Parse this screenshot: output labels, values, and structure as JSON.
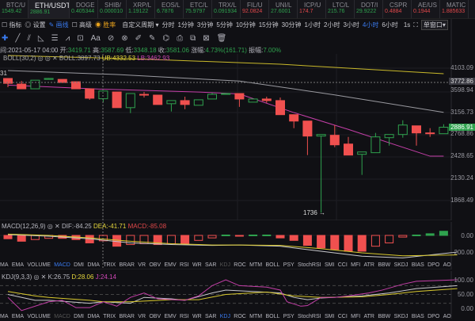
{
  "tickers": [
    {
      "name": "BTC/U",
      "price": "1549.42",
      "dir": "up"
    },
    {
      "name": "ETH/USDT",
      "price": "2886.91",
      "dir": "up",
      "active": true
    },
    {
      "name": "DOGE",
      "price": "0.405344",
      "dir": "up"
    },
    {
      "name": "SHIB/",
      "price": "0.000010",
      "dir": "up"
    },
    {
      "name": "XRP/L",
      "price": "1.19122",
      "dir": "up"
    },
    {
      "name": "EOS/L",
      "price": "6.7876",
      "dir": "up"
    },
    {
      "name": "ETC/L",
      "price": "75.9797",
      "dir": "up"
    },
    {
      "name": "TRX/L",
      "price": "0.091934",
      "dir": "up"
    },
    {
      "name": "FIL/U",
      "price": "92.0824",
      "dir": "dn"
    },
    {
      "name": "UNI/L",
      "price": "27.6001",
      "dir": "up"
    },
    {
      "name": "ICP/U",
      "price": "174.7",
      "dir": "dn"
    },
    {
      "name": "LTC/L",
      "price": "215.76",
      "dir": "up"
    },
    {
      "name": "DOT/I",
      "price": "29.9222",
      "dir": "up"
    },
    {
      "name": "CSPR",
      "price": "0.4884",
      "dir": "dn"
    },
    {
      "name": "AE/US",
      "price": "0.1944",
      "dir": "dn"
    },
    {
      "name": "MATIC",
      "price": "1.885633",
      "dir": "dn"
    }
  ],
  "toolbar": {
    "indicators": "☐ 指标",
    "settings": "◎ 设置",
    "draw": "✎ 画线",
    "advanced": "☐ 高级",
    "winrate": "◉ 胜率",
    "custom": "自定义周期 ▾",
    "periods": [
      "分时",
      "1分钟",
      "3分钟",
      "5分钟",
      "10分钟",
      "15分钟",
      "30分钟",
      "1小时",
      "2小时",
      "3小时",
      "4小时",
      "6小时"
    ],
    "active_period": "4小时",
    "s1": "1s",
    "window": "单窗口▾"
  },
  "draw_tools": [
    "✚",
    "╱",
    "⫽",
    "◺",
    "☰",
    "⩘",
    "⊡",
    "Aa",
    "⊘",
    "⊗",
    "✐",
    "✎",
    "⌬",
    "⎙",
    "⧉",
    "⊠",
    "🗑"
  ],
  "info": {
    "time": "间:2021-05-17 04:00",
    "open_l": "开:",
    "open": "3419.71",
    "high_l": "高:",
    "high": "3587.69",
    "low_l": "低:",
    "low": "3348.18",
    "close_l": "收:",
    "close": "3581.06",
    "chg_l": "涨幅:",
    "chg": "4.73%(161.71)",
    "amp_l": "振幅:",
    "amp": "7.00%"
  },
  "boll": {
    "name": "BOLL(30,2)",
    "mid": "BOLL:3897.73",
    "ub": "UB:4332.53",
    "lb": "LB:3462.93"
  },
  "axis": {
    "price": [
      "4103.09",
      "3598.94",
      "3156.73",
      "2768.86",
      "2428.65",
      "2130.24",
      "1868.49"
    ],
    "cross_price": "3772.86",
    "last_price": "2886.91",
    "left_label": "31",
    "low_marker": "1736 →"
  },
  "macd": {
    "name": "MACD(12,26,9)",
    "dif": "DIF:-84.25",
    "dea": "DEA:-41.71",
    "macd": "MACD:-85.08",
    "ticks": [
      "0.00",
      "-200.00"
    ]
  },
  "kdj": {
    "name": "KDJ(9,3,3)",
    "k": "K:26.75",
    "d": "D:28.06",
    "j": "J:24.14",
    "ticks": [
      "100.00",
      "50.00",
      "0.00"
    ]
  },
  "indicators": [
    "MA",
    "EMA",
    "VOLUME",
    "MACD",
    "DMI",
    "DMA",
    "TRIX",
    "BRAR",
    "VR",
    "OBV",
    "EMV",
    "RSI",
    "WR",
    "SAR",
    "KDJ",
    "ROC",
    "MTM",
    "BOLL",
    "PSY",
    "StochRSI",
    "SMI",
    "CCI",
    "MFI",
    "ATR",
    "BBW",
    "SKDJ",
    "BIAS",
    "DPO",
    "AO"
  ],
  "colors": {
    "up": "#2fa24e",
    "down": "#f0504f",
    "boll_up": "#c9b92a",
    "boll_mid": "#9a9aa0",
    "boll_low": "#c43fa8",
    "accent": "#3a7bf0"
  },
  "chart_data": {
    "type": "candlestick",
    "scale": "log",
    "ylim": [
      1740,
      4500
    ],
    "candles": [
      [
        3859,
        3859,
        3663,
        3749
      ],
      [
        3732,
        3802,
        3629,
        3629
      ],
      [
        3629,
        3820,
        3629,
        3820
      ],
      [
        3838,
        3870,
        3838,
        3859
      ],
      [
        3838,
        3838,
        3767,
        3767
      ],
      [
        3785,
        3785,
        3629,
        3629
      ],
      [
        3629,
        3629,
        3399,
        3431
      ],
      [
        3419.71,
        3587.69,
        3348.18,
        3581.06
      ],
      [
        3561,
        3561,
        3244,
        3244
      ],
      [
        3244,
        3528,
        3140,
        3528
      ],
      [
        3511,
        3561,
        3447,
        3495
      ],
      [
        3495,
        3495,
        3305,
        3305
      ],
      [
        3321,
        3383,
        3170,
        3383
      ],
      [
        3383,
        3463,
        3214,
        3305
      ],
      [
        3290,
        3399,
        3290,
        3399
      ],
      [
        3415,
        3544,
        3415,
        3511
      ],
      [
        3511,
        3528,
        3511,
        3528
      ],
      [
        3528,
        3528,
        3259,
        3415
      ],
      [
        3352,
        3415,
        3352,
        3415
      ],
      [
        3415,
        3463,
        3336,
        3383
      ],
      [
        3383,
        3447,
        3111,
        3111
      ],
      [
        3111,
        3111,
        2871,
        2995
      ],
      [
        2995,
        2995,
        2446,
        2739
      ],
      [
        2739,
        2765,
        1736,
        2765
      ],
      [
        2752,
        2925,
        2564,
        2600
      ],
      [
        2612,
        2726,
        2446,
        2446
      ],
      [
        2457,
        2492,
        2174,
        2492
      ],
      [
        2481,
        2791,
        2481,
        2726
      ],
      [
        2713,
        2765,
        2588,
        2765
      ],
      [
        2765,
        3009,
        2713,
        2925
      ],
      [
        2911,
        2911,
        2588,
        2791
      ],
      [
        2791,
        2871,
        2726,
        2778
      ],
      [
        2778,
        2939,
        2778,
        2886.91
      ]
    ],
    "boll_upper": [
      [
        0,
        4425
      ],
      [
        10,
        4330
      ],
      [
        20,
        4200
      ],
      [
        32,
        3970
      ]
    ],
    "boll_mid": [
      [
        0,
        4045
      ],
      [
        8,
        3950
      ],
      [
        17,
        3800
      ],
      [
        24,
        3500
      ],
      [
        32,
        3155
      ]
    ],
    "boll_lower": [
      [
        0,
        3710
      ],
      [
        7,
        3620
      ],
      [
        14,
        3560
      ],
      [
        17,
        3520
      ],
      [
        21,
        3150
      ],
      [
        25,
        2850
      ],
      [
        31,
        2430
      ],
      [
        32,
        2430
      ]
    ],
    "macd_hist": [
      -40,
      -70,
      -50,
      -35,
      -35,
      -50,
      -90,
      -65,
      -130,
      -110,
      -100,
      -110,
      -100,
      -100,
      -60,
      -30,
      5,
      -5,
      5,
      5,
      -30,
      -60,
      -120,
      -150,
      -170,
      -190,
      -190,
      -130,
      -90,
      -20,
      5,
      20,
      50
    ],
    "dif": [
      [
        0,
        10
      ],
      [
        3,
        -10
      ],
      [
        6,
        -40
      ],
      [
        9,
        -90
      ],
      [
        12,
        -110
      ],
      [
        15,
        -120
      ],
      [
        17,
        -115
      ],
      [
        20,
        -130
      ],
      [
        23,
        -190
      ],
      [
        26,
        -250
      ],
      [
        29,
        -270
      ],
      [
        33,
        -200
      ]
    ],
    "dea": [
      [
        0,
        15
      ],
      [
        3,
        0
      ],
      [
        6,
        -30
      ],
      [
        9,
        -70
      ],
      [
        12,
        -100
      ],
      [
        15,
        -115
      ],
      [
        17,
        -115
      ],
      [
        20,
        -120
      ],
      [
        23,
        -160
      ],
      [
        26,
        -210
      ],
      [
        29,
        -245
      ],
      [
        33,
        -235
      ]
    ],
    "k": [
      [
        0,
        50
      ],
      [
        2,
        30
      ],
      [
        3,
        30
      ],
      [
        6,
        20
      ],
      [
        7,
        25
      ],
      [
        9,
        20
      ],
      [
        10,
        40
      ],
      [
        12,
        35
      ],
      [
        13,
        30
      ],
      [
        15,
        55
      ],
      [
        16,
        65
      ],
      [
        18,
        60
      ],
      [
        20,
        55
      ],
      [
        21,
        40
      ],
      [
        22,
        32
      ],
      [
        23,
        38
      ],
      [
        26,
        45
      ],
      [
        28,
        55
      ],
      [
        30,
        70
      ],
      [
        33,
        80
      ]
    ],
    "d": [
      [
        0,
        60
      ],
      [
        2,
        45
      ],
      [
        3,
        40
      ],
      [
        6,
        30
      ],
      [
        7,
        25
      ],
      [
        9,
        25
      ],
      [
        12,
        32
      ],
      [
        14,
        32
      ],
      [
        16,
        50
      ],
      [
        19,
        58
      ],
      [
        21,
        45
      ],
      [
        23,
        40
      ],
      [
        26,
        42
      ],
      [
        28,
        50
      ],
      [
        30,
        60
      ],
      [
        33,
        70
      ]
    ],
    "j": [
      [
        0,
        40
      ],
      [
        1,
        -5
      ],
      [
        3,
        25
      ],
      [
        4,
        30
      ],
      [
        5,
        5
      ],
      [
        6,
        5
      ],
      [
        7,
        25
      ],
      [
        8,
        10
      ],
      [
        9,
        40
      ],
      [
        10,
        55
      ],
      [
        11,
        35
      ],
      [
        13,
        30
      ],
      [
        14,
        45
      ],
      [
        15,
        80
      ],
      [
        16,
        100
      ],
      [
        17,
        80
      ],
      [
        19,
        75
      ],
      [
        20,
        65
      ],
      [
        20.5,
        25
      ],
      [
        21.5,
        10
      ],
      [
        22,
        12
      ],
      [
        23,
        40
      ],
      [
        24,
        40
      ],
      [
        25,
        45
      ],
      [
        26.5,
        55
      ],
      [
        27.5,
        65
      ],
      [
        29,
        85
      ],
      [
        30,
        95
      ],
      [
        33,
        100
      ]
    ]
  }
}
